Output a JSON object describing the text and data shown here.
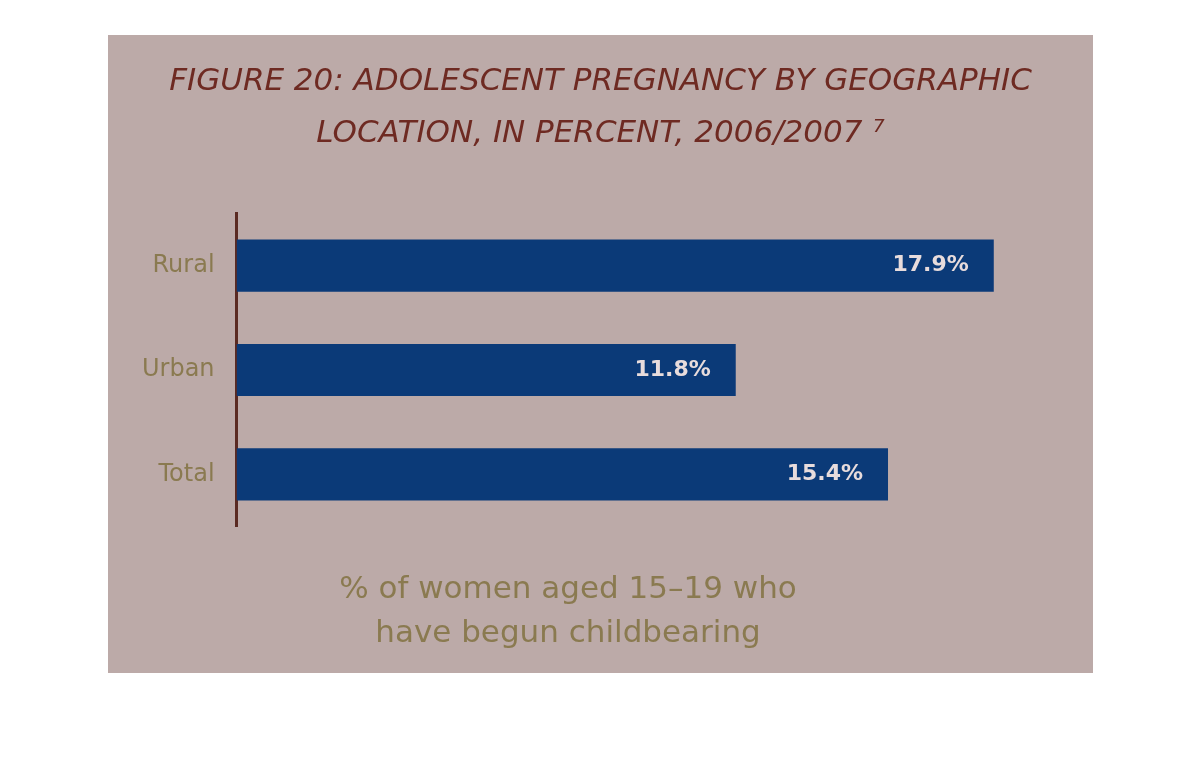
{
  "chart_data": {
    "type": "bar",
    "orientation": "horizontal",
    "title": "FIGURE 20: ADOLESCENT PREGNANCY BY GEOGRAPHIC LOCATION, IN PERCENT, 2006/2007 ⁷",
    "xlabel": "% of women aged 15–19 who have begun childbearing",
    "categories": [
      "Rural",
      "Urban",
      "Total"
    ],
    "values": [
      17.9,
      11.8,
      15.4
    ],
    "value_labels": [
      "17.9%",
      "11.8%",
      "15.4%"
    ],
    "color": "#0b3a78",
    "legend": false
  }
}
